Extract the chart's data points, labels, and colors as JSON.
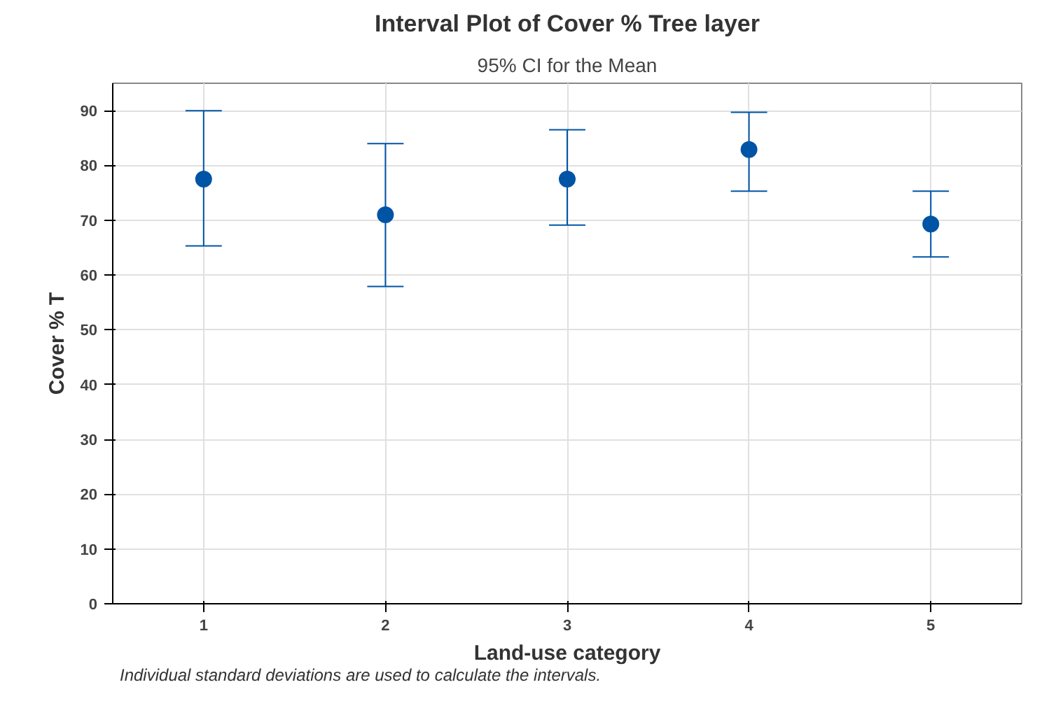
{
  "chart_data": {
    "type": "scatter",
    "title": "Interval Plot of Cover % Tree layer",
    "subtitle": "95% CI for the Mean",
    "xlabel": "Land-use category",
    "ylabel": "Cover % T",
    "categories": [
      "1",
      "2",
      "3",
      "4",
      "5"
    ],
    "series": [
      {
        "color": "#0054a6",
        "values": [
          77.5,
          71.0,
          77.5,
          82.9,
          69.3
        ],
        "errors": [
          [
            65.3,
            90.0
          ],
          [
            57.9,
            84.0
          ],
          [
            69.1,
            86.5
          ],
          [
            75.3,
            89.7
          ],
          [
            63.3,
            75.3
          ]
        ]
      }
    ],
    "ylim": [
      0,
      95
    ],
    "yticks": [
      0,
      10,
      20,
      30,
      40,
      50,
      60,
      70,
      80,
      90
    ],
    "grid": true,
    "marker": "circle",
    "annotations": [
      "Individual standard deviations are used to calculate the intervals."
    ]
  }
}
